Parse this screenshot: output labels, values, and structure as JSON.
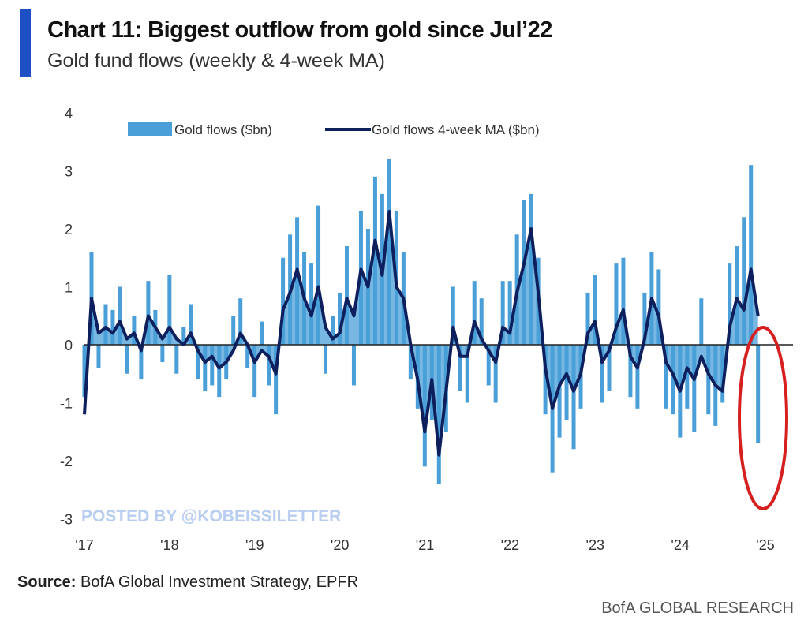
{
  "header": {
    "title": "Chart 11: Biggest outflow from gold since Jul’22",
    "subtitle": "Gold fund flows (weekly & 4-week MA)"
  },
  "footer": {
    "source_label": "Source:",
    "source_text": " BofA Global Investment Strategy, EPFR",
    "brand": "BofA GLOBAL RESEARCH"
  },
  "watermark": "POSTED BY @KOBEISSILETTER",
  "colors": {
    "bars": "#4a9fd8",
    "ma": "#0d1f5c",
    "highlight": "#d62020",
    "accent": "#1f4fc4"
  },
  "chart_data": {
    "type": "bar+line",
    "title": "Chart 11: Biggest outflow from gold since Jul’22",
    "ylim": [
      -3,
      4
    ],
    "yticks": [
      -3,
      -2,
      -1,
      0,
      1,
      2,
      3,
      4
    ],
    "xlim": [
      2017,
      2025
    ],
    "xticks": [
      {
        "v": 2017,
        "label": "'17"
      },
      {
        "v": 2018,
        "label": "'18"
      },
      {
        "v": 2019,
        "label": "'19"
      },
      {
        "v": 2020,
        "label": "'20"
      },
      {
        "v": 2021,
        "label": "'21"
      },
      {
        "v": 2022,
        "label": "'22"
      },
      {
        "v": 2023,
        "label": "'23"
      },
      {
        "v": 2024,
        "label": "'24"
      },
      {
        "v": 2025,
        "label": "'25"
      }
    ],
    "x_start": 2017.0,
    "x_step_years": 0.0833,
    "legend": [
      "Gold flows ($bn)",
      "Gold flows 4-week MA ($bn)"
    ],
    "legend_position": "top",
    "series": [
      {
        "name": "Gold flows ($bn)",
        "type": "bar",
        "values": [
          -0.9,
          1.6,
          -0.4,
          0.7,
          0.6,
          1.0,
          -0.5,
          0.5,
          -0.6,
          1.1,
          0.6,
          -0.3,
          1.2,
          -0.5,
          0.3,
          0.7,
          -0.6,
          -0.8,
          -0.7,
          -0.9,
          -0.6,
          0.5,
          0.8,
          -0.4,
          -0.9,
          0.4,
          -0.7,
          -1.2,
          1.5,
          1.9,
          2.2,
          1.6,
          1.4,
          2.4,
          -0.5,
          0.5,
          0.9,
          1.7,
          -0.7,
          2.3,
          2.0,
          2.9,
          2.6,
          3.2,
          2.3,
          1.6,
          -0.6,
          -1.1,
          -2.1,
          -1.3,
          -2.4,
          -1.5,
          1.0,
          -0.8,
          -1.0,
          1.1,
          0.8,
          -0.7,
          -1.0,
          1.1,
          1.1,
          1.9,
          2.5,
          2.6,
          1.5,
          -1.2,
          -2.2,
          -1.6,
          -1.3,
          -1.8,
          -1.1,
          0.9,
          1.2,
          -1.0,
          -0.8,
          1.4,
          1.5,
          -0.9,
          -1.1,
          0.9,
          1.6,
          1.3,
          -1.1,
          -1.2,
          -1.6,
          -1.1,
          -1.5,
          0.8,
          -1.2,
          -1.4,
          -1.0,
          1.4,
          1.7,
          2.2,
          3.1,
          -1.7
        ]
      },
      {
        "name": "Gold flows 4-week MA ($bn)",
        "type": "line",
        "values": [
          -1.2,
          0.8,
          0.2,
          0.3,
          0.2,
          0.4,
          0.1,
          0.2,
          -0.1,
          0.5,
          0.3,
          0.1,
          0.3,
          0.1,
          0.0,
          0.2,
          -0.1,
          -0.3,
          -0.2,
          -0.4,
          -0.3,
          -0.1,
          0.2,
          0.0,
          -0.3,
          -0.1,
          -0.2,
          -0.5,
          0.6,
          0.9,
          1.3,
          0.8,
          0.5,
          1.0,
          0.3,
          0.1,
          0.2,
          0.8,
          0.5,
          1.3,
          1.0,
          1.8,
          1.2,
          2.3,
          1.0,
          0.8,
          0.0,
          -0.6,
          -1.5,
          -0.6,
          -1.9,
          -0.8,
          0.3,
          -0.2,
          -0.2,
          0.4,
          0.1,
          -0.1,
          -0.3,
          0.3,
          0.2,
          0.9,
          1.4,
          2.0,
          0.9,
          -0.4,
          -1.1,
          -0.7,
          -0.5,
          -0.8,
          -0.5,
          0.2,
          0.4,
          -0.3,
          -0.1,
          0.3,
          0.6,
          -0.2,
          -0.4,
          0.1,
          0.8,
          0.5,
          -0.3,
          -0.5,
          -0.8,
          -0.4,
          -0.6,
          -0.2,
          -0.5,
          -0.7,
          -0.8,
          0.3,
          0.8,
          0.6,
          1.3,
          0.5
        ]
      }
    ]
  }
}
